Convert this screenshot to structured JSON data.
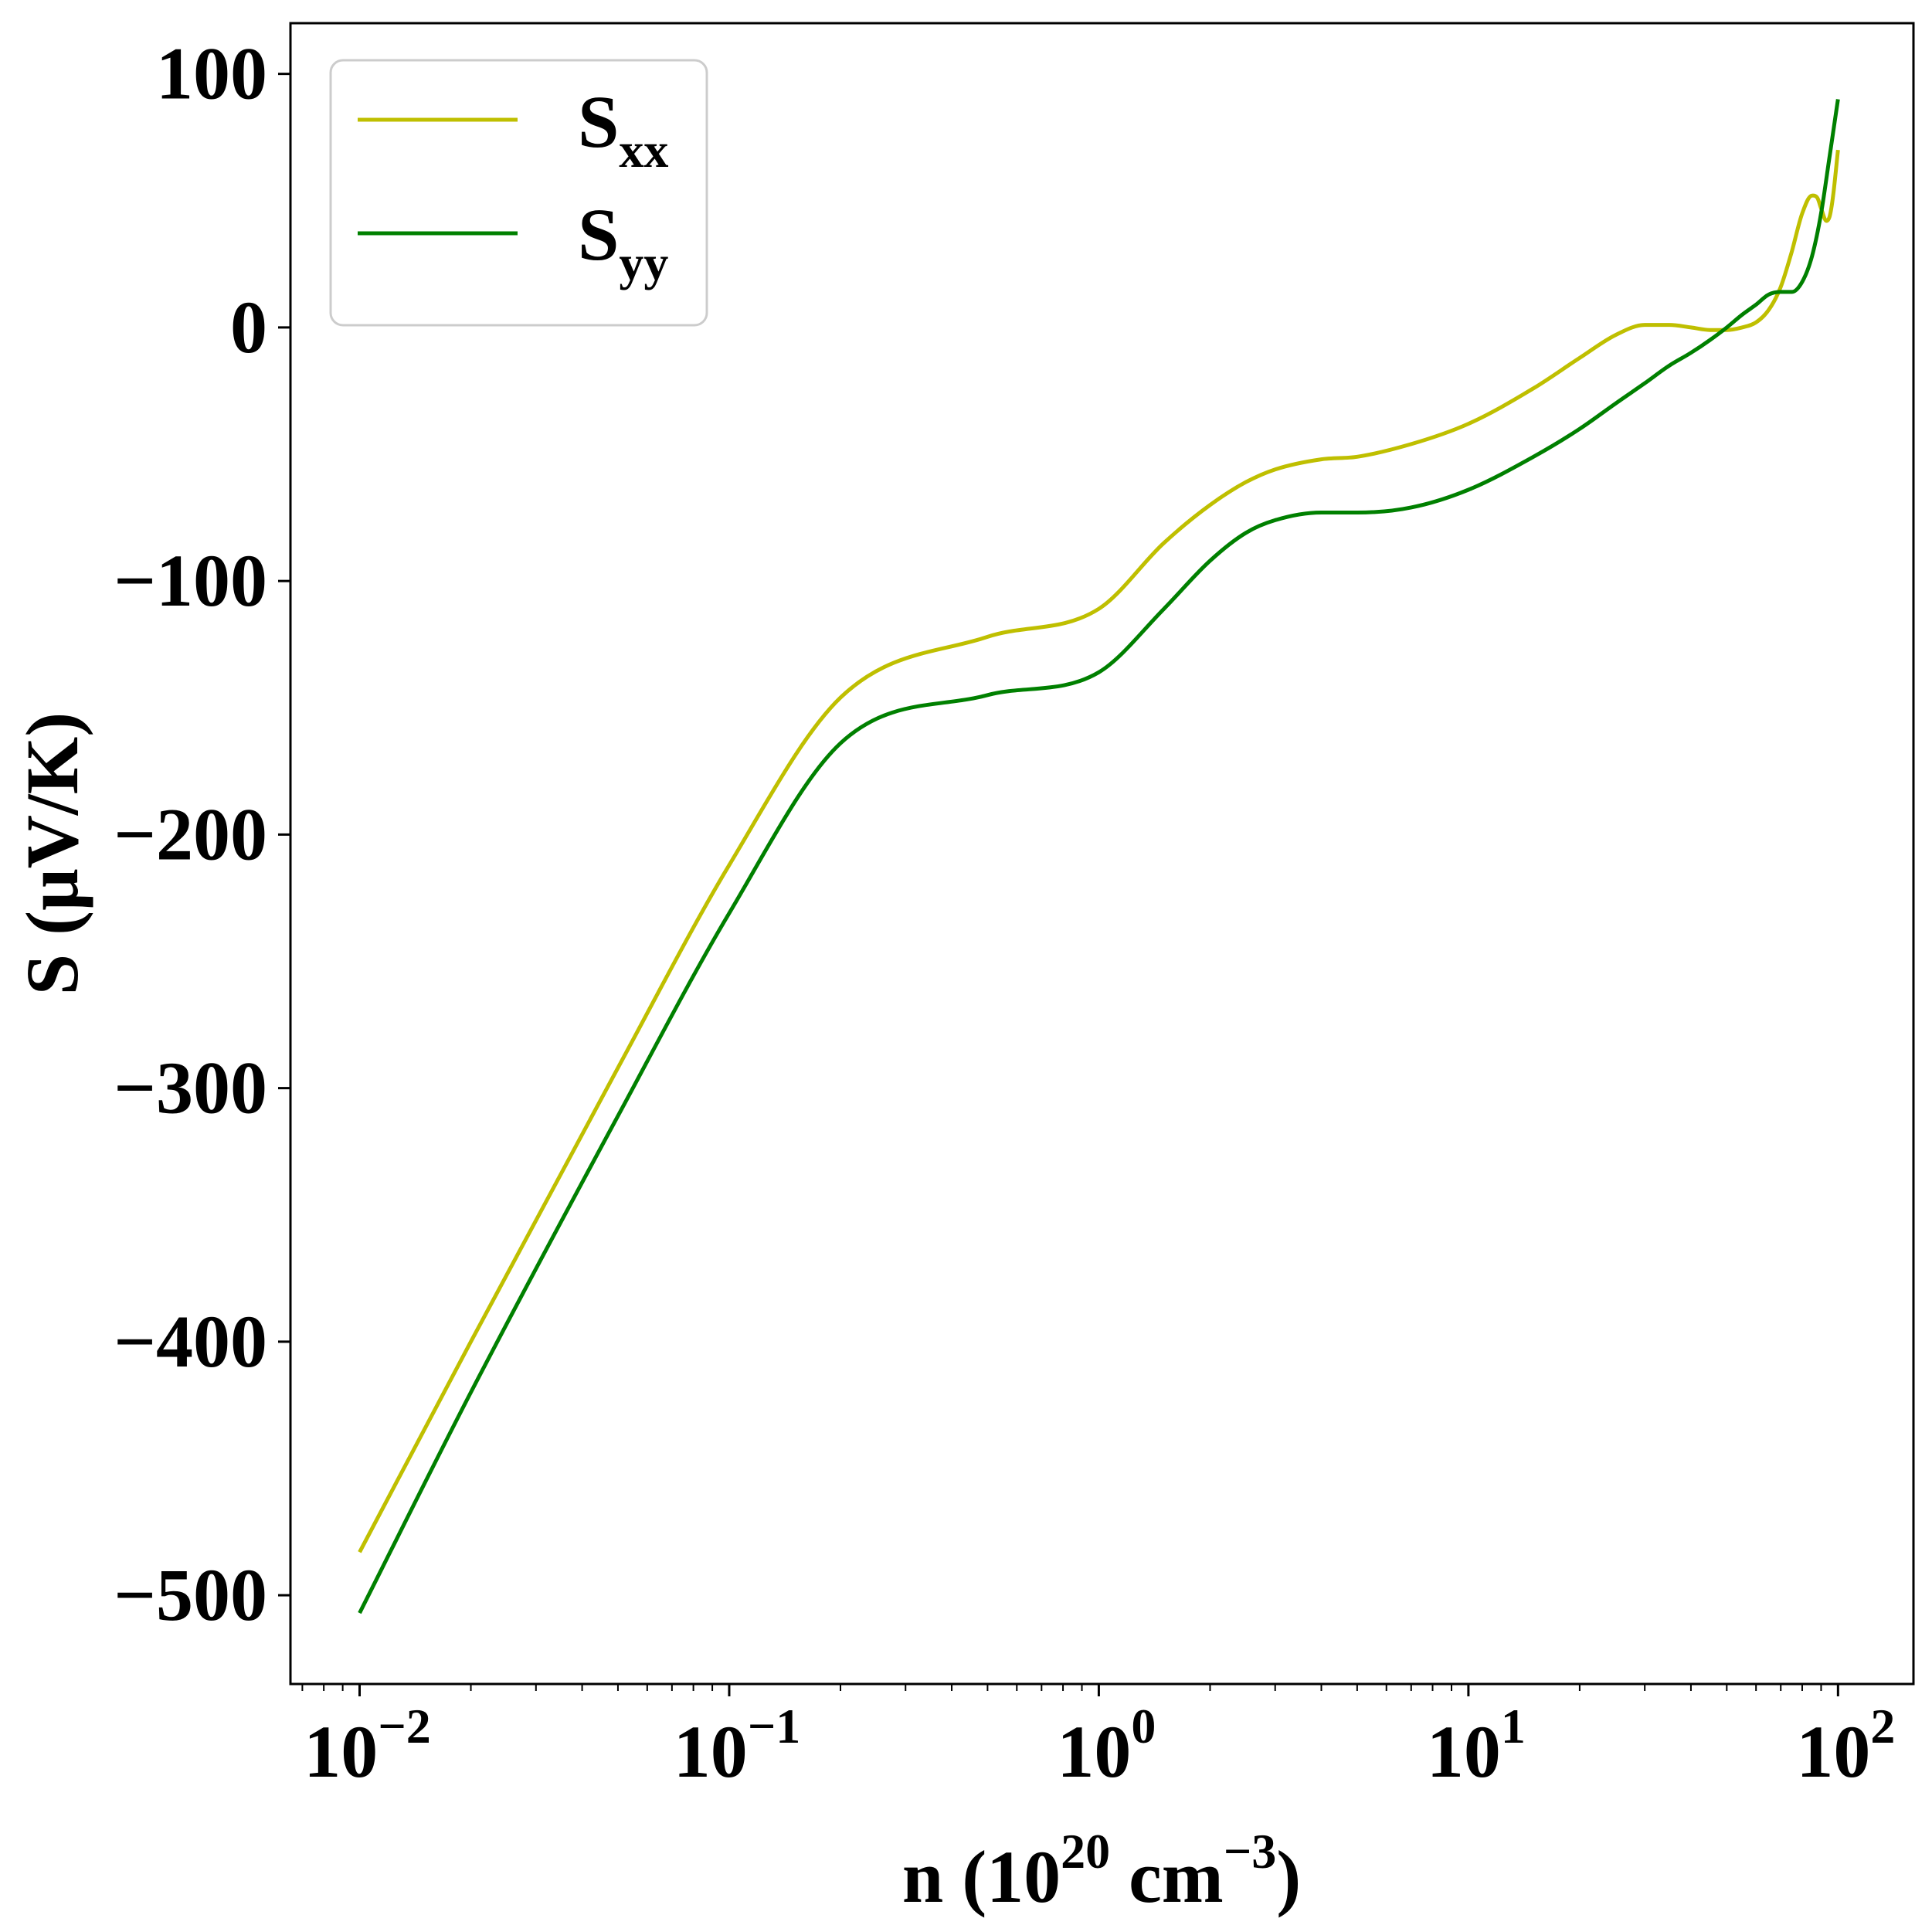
{
  "chart_data": {
    "type": "line",
    "xscale": "log",
    "xlim": [
      0.0065,
      160
    ],
    "ylim": [
      -535,
      120
    ],
    "xticks": [
      {
        "value": 0.01,
        "base": "10",
        "exp": "−2"
      },
      {
        "value": 0.1,
        "base": "10",
        "exp": "−1"
      },
      {
        "value": 1,
        "base": "10",
        "exp": "0"
      },
      {
        "value": 10,
        "base": "10",
        "exp": "1"
      },
      {
        "value": 100,
        "base": "10",
        "exp": "2"
      }
    ],
    "yticks": [
      {
        "value": 100,
        "label": "100"
      },
      {
        "value": 0,
        "label": "0"
      },
      {
        "value": -100,
        "label": "−100"
      },
      {
        "value": -200,
        "label": "−200"
      },
      {
        "value": -300,
        "label": "−300"
      },
      {
        "value": -400,
        "label": "−400"
      },
      {
        "value": -500,
        "label": "−500"
      }
    ],
    "xlabel": {
      "main": "n (10",
      "sup1": "20",
      "mid": " cm",
      "sup2": "−3",
      "end": ")"
    },
    "ylabel": "S (μV/K)",
    "legend_position": "upper-left",
    "grid": false,
    "series": [
      {
        "name": "S",
        "sub": "xx",
        "color": "#bfbf00",
        "x": [
          0.01,
          0.02,
          0.05,
          0.1,
          0.2,
          0.5,
          1,
          1.5,
          2,
          2.5,
          3,
          4,
          5,
          7,
          10,
          15,
          20,
          25,
          30,
          35,
          40,
          45,
          50,
          55,
          60,
          65,
          70,
          75,
          80,
          85,
          88,
          90,
          93,
          95,
          97,
          100
        ],
        "y": [
          -483,
          -400,
          -292,
          -212,
          -146,
          -122,
          -111,
          -85,
          -70,
          -61,
          -56,
          -52,
          -51,
          -46,
          -38,
          -24,
          -12,
          -3,
          1,
          1,
          0,
          -1,
          -1,
          0,
          2,
          7,
          16,
          30,
          45,
          52,
          51,
          47,
          42,
          44,
          52,
          70
        ]
      },
      {
        "name": "S",
        "sub": "yy",
        "color": "#008000",
        "x": [
          0.01,
          0.02,
          0.05,
          0.1,
          0.2,
          0.5,
          1,
          1.5,
          2,
          2.5,
          3,
          4,
          5,
          7,
          10,
          15,
          20,
          25,
          30,
          35,
          40,
          45,
          50,
          55,
          60,
          65,
          70,
          75,
          80,
          85,
          90,
          95,
          100
        ],
        "y": [
          -507,
          -420,
          -311,
          -231,
          -164,
          -145,
          -136,
          -111,
          -92,
          -81,
          -76,
          -73,
          -73,
          -71,
          -64,
          -51,
          -40,
          -30,
          -22,
          -15,
          -10,
          -5,
          0,
          5,
          9,
          13,
          14,
          14,
          18,
          28,
          45,
          68,
          90
        ]
      }
    ]
  }
}
